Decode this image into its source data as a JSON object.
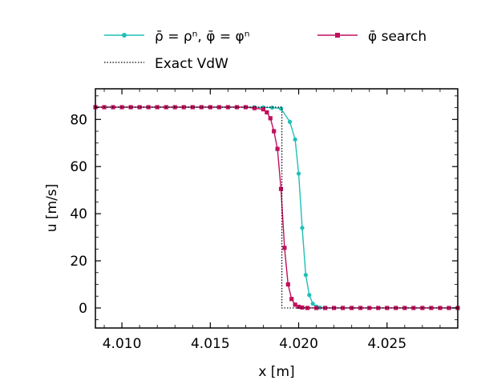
{
  "chart_data": {
    "type": "line",
    "title": "",
    "xlabel": "x [m]",
    "ylabel": "u [m/s]",
    "xlim": [
      4.0085,
      4.029
    ],
    "ylim": [
      -8.5,
      93
    ],
    "xticks": [
      4.01,
      4.015,
      4.02,
      4.025
    ],
    "xtick_labels": [
      "4.010",
      "4.015",
      "4.020",
      "4.025"
    ],
    "yticks": [
      0,
      20,
      40,
      60,
      80
    ],
    "ytick_labels": [
      "0",
      "20",
      "40",
      "60",
      "80"
    ],
    "grid": false,
    "legend_placement": "above plot",
    "series": [
      {
        "name": "ρ̄ = ρⁿ, φ̄ = φⁿ",
        "color": "#1fbfb8",
        "marker": "circle",
        "x": [
          4.0085,
          4.009,
          4.0095,
          4.01,
          4.0105,
          4.011,
          4.0115,
          4.012,
          4.0125,
          4.013,
          4.0135,
          4.014,
          4.0145,
          4.015,
          4.0155,
          4.016,
          4.0165,
          4.017,
          4.0175,
          4.018,
          4.0185,
          4.019,
          4.0195,
          4.0198,
          4.02,
          4.0202,
          4.0204,
          4.0206,
          4.0208,
          4.021,
          4.0212,
          4.0215,
          4.022,
          4.0225,
          4.023,
          4.0235,
          4.024,
          4.0245,
          4.025,
          4.0255,
          4.026,
          4.0265,
          4.027,
          4.0275,
          4.028,
          4.0285,
          4.029
        ],
        "y": [
          85.2,
          85.2,
          85.2,
          85.2,
          85.2,
          85.2,
          85.2,
          85.2,
          85.2,
          85.2,
          85.2,
          85.2,
          85.2,
          85.2,
          85.2,
          85.2,
          85.2,
          85.2,
          85.2,
          85.1,
          85.0,
          84.6,
          79.0,
          71.5,
          57.0,
          34.0,
          14.0,
          5.5,
          1.8,
          0.6,
          0.2,
          0.0,
          0.0,
          0.0,
          0.0,
          0.0,
          0.0,
          0.0,
          0.0,
          0.0,
          0.0,
          0.0,
          0.0,
          0.0,
          0.0,
          0.0,
          0.0
        ]
      },
      {
        "name": "φ̄ search",
        "color": "#c0105e",
        "marker": "square",
        "x": [
          4.0085,
          4.009,
          4.0095,
          4.01,
          4.0105,
          4.011,
          4.0115,
          4.012,
          4.0125,
          4.013,
          4.0135,
          4.014,
          4.0145,
          4.015,
          4.0155,
          4.016,
          4.0165,
          4.017,
          4.0175,
          4.018,
          4.0182,
          4.0184,
          4.0186,
          4.0188,
          4.019,
          4.0192,
          4.0194,
          4.0196,
          4.0198,
          4.02,
          4.0202,
          4.0205,
          4.021,
          4.0215,
          4.022,
          4.0225,
          4.023,
          4.0235,
          4.024,
          4.0245,
          4.025,
          4.0255,
          4.026,
          4.0265,
          4.027,
          4.0275,
          4.028,
          4.0285,
          4.029
        ],
        "y": [
          85.2,
          85.2,
          85.2,
          85.2,
          85.2,
          85.2,
          85.2,
          85.2,
          85.2,
          85.2,
          85.2,
          85.2,
          85.2,
          85.2,
          85.2,
          85.2,
          85.2,
          85.2,
          84.8,
          84.3,
          83.0,
          80.5,
          75.0,
          67.5,
          50.5,
          25.5,
          10.0,
          3.8,
          1.4,
          0.5,
          0.2,
          0.0,
          0.0,
          0.0,
          0.0,
          0.0,
          0.0,
          0.0,
          0.0,
          0.0,
          0.0,
          0.0,
          0.0,
          0.0,
          0.0,
          0.0,
          0.0,
          0.0,
          0.0
        ]
      },
      {
        "name": "Exact VdW",
        "color": "#000000",
        "marker": "none",
        "dash": "dotted",
        "x": [
          4.0085,
          4.01905,
          4.01905,
          4.029
        ],
        "y": [
          85.2,
          85.2,
          0.0,
          0.0
        ]
      }
    ]
  }
}
